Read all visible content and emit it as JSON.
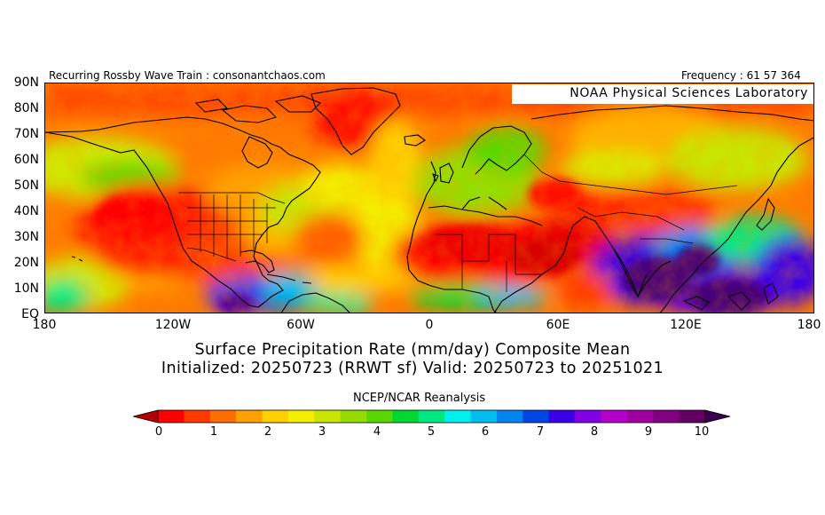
{
  "header": {
    "left_text": "Recurring Rossby Wave Train : consonantchaos.com",
    "right_text": "Frequency : 61 57 364"
  },
  "map": {
    "credit": "NOAA Physical Sciences Laboratory",
    "lat_labels": [
      "90N",
      "80N",
      "70N",
      "60N",
      "50N",
      "40N",
      "30N",
      "20N",
      "10N",
      "EQ"
    ],
    "lon_labels": [
      "180",
      "120W",
      "60W",
      "0",
      "60E",
      "120E",
      "180"
    ]
  },
  "titles": {
    "line1": "Surface Precipitation Rate (mm/day) Composite Mean",
    "line2": "Initialized: 20250723 (RRWT sf) Valid: 20250723 to 20251021"
  },
  "colorbar": {
    "source": "NCEP/NCAR Reanalysis",
    "ticks": [
      "0",
      "1",
      "2",
      "3",
      "4",
      "5",
      "6",
      "7",
      "8",
      "9",
      "10"
    ],
    "min_color": "#b40000",
    "max_color": "#3c0050",
    "colors": [
      "#ff0000",
      "#ff3a00",
      "#ff6e00",
      "#ffa000",
      "#ffd000",
      "#f4ee00",
      "#c8e600",
      "#96dc00",
      "#58d800",
      "#00d832",
      "#00e882",
      "#00f0f0",
      "#00bef0",
      "#0084f0",
      "#0046e6",
      "#3c00e6",
      "#8200e6",
      "#b400c8",
      "#a000a0",
      "#820082",
      "#640064"
    ]
  }
}
